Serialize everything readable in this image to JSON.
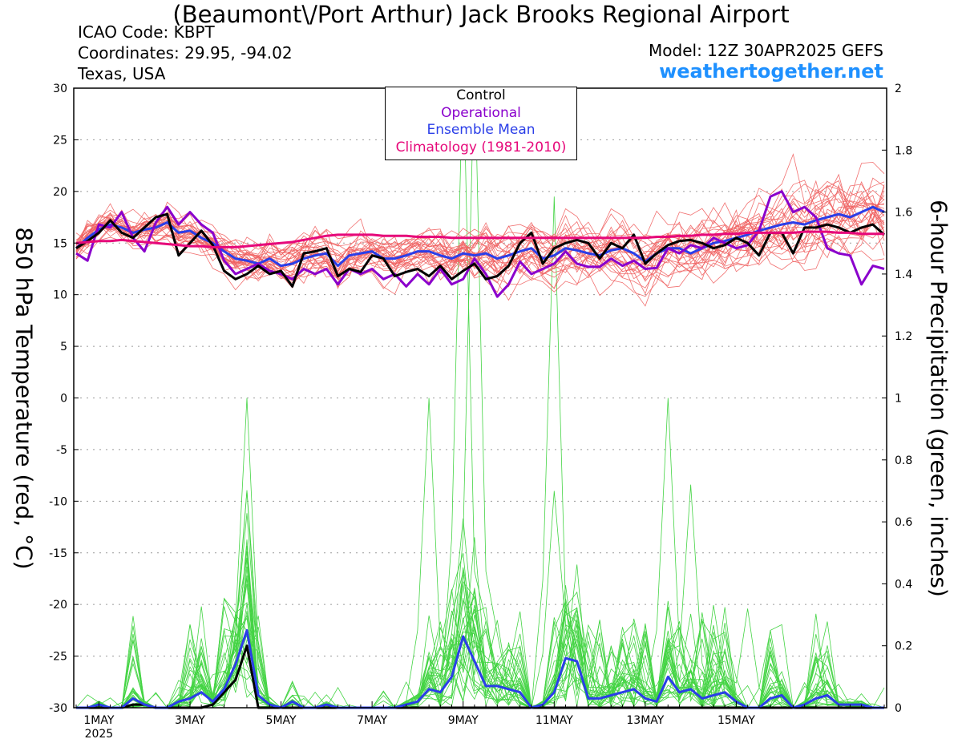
{
  "header": {
    "title": "(Beaumont\\/Port Arthur) Jack Brooks Regional Airport",
    "icao": "ICAO Code: KBPT",
    "coords": "Coordinates: 29.95, -94.02",
    "region": "Texas, USA",
    "model": "Model: 12Z 30APR2025 GEFS",
    "site": "weathertogether.net"
  },
  "legend": {
    "control": "Control",
    "operational": "Operational",
    "mean": "Ensemble Mean",
    "climo": "Climatology (1981-2010)"
  },
  "colors": {
    "member_temp": "#f06060",
    "member_precip": "#44d444",
    "control": "#000000",
    "operational": "#8a00cc",
    "mean": "#2a3ee8",
    "climo": "#e6087a",
    "site_link": "#1e90ff"
  },
  "chart_data": {
    "type": "line",
    "xlabel": "",
    "x_ticks": [
      "1MAY",
      "3MAY",
      "5MAY",
      "7MAY",
      "9MAY",
      "11MAY",
      "13MAY",
      "15MAY"
    ],
    "x_tick_year": "2025",
    "x_step_hours": 6,
    "x_start": "2025-04-30 12Z",
    "x_end": "2025-05-16 18Z",
    "ylabel_left": "850 hPa Temperature (red, °C)",
    "ylabel_right": "6-hour Precipitation (green, inches)",
    "ylim_left": [
      -30,
      30
    ],
    "yticks_left": [
      30,
      25,
      20,
      15,
      10,
      5,
      0,
      -5,
      -10,
      -15,
      -20,
      -25,
      -30
    ],
    "ylim_right": [
      0,
      2
    ],
    "yticks_right": [
      "2",
      "1.8",
      "1.6",
      "1.4",
      "1.2",
      "1",
      "0.8",
      "0.6",
      "0.4",
      "0.2",
      "0"
    ],
    "grid": true,
    "legend_position": "top-center",
    "series": [
      {
        "name": "Control",
        "axis": "left",
        "values": [
          14.5,
          15.2,
          16.0,
          17.2,
          16.0,
          15.5,
          16.5,
          17.5,
          17.8,
          13.8,
          15.0,
          16.2,
          14.8,
          12.3,
          11.5,
          12.0,
          12.8,
          12.0,
          12.3,
          10.8,
          14.0,
          14.2,
          14.5,
          11.8,
          12.5,
          12.2,
          13.8,
          13.5,
          11.8,
          12.2,
          12.5,
          11.8,
          12.8,
          11.5,
          12.3,
          13.0,
          11.5,
          11.8,
          12.8,
          15.0,
          16.0,
          13.0,
          14.5,
          15.0,
          15.3,
          15.0,
          13.5,
          15.0,
          14.5,
          15.8,
          13.0,
          14.0,
          14.8,
          15.2,
          15.3,
          15.0,
          14.5,
          14.8,
          15.5,
          15.0,
          13.8,
          16.0,
          16.0,
          14.0,
          16.5,
          16.5,
          16.8,
          16.5,
          16.0,
          16.5,
          16.8,
          15.8
        ]
      },
      {
        "name": "Operational",
        "axis": "left",
        "values": [
          14.0,
          13.3,
          16.8,
          16.5,
          18.0,
          15.5,
          14.2,
          17.0,
          18.5,
          16.8,
          18.0,
          16.8,
          16.0,
          13.3,
          12.0,
          12.5,
          13.0,
          12.3,
          12.0,
          11.5,
          12.5,
          12.0,
          12.5,
          11.0,
          12.5,
          12.0,
          12.5,
          11.5,
          12.0,
          10.8,
          12.0,
          11.0,
          12.5,
          11.0,
          11.5,
          13.5,
          12.0,
          9.8,
          11.0,
          13.2,
          12.0,
          12.5,
          13.0,
          14.2,
          13.0,
          12.7,
          12.7,
          13.5,
          12.8,
          13.3,
          12.5,
          12.6,
          14.5,
          14.0,
          14.8,
          14.5,
          15.5,
          15.0,
          14.5,
          14.8,
          16.2,
          19.5,
          20.0,
          18.0,
          18.5,
          17.5,
          14.5,
          14.0,
          13.8,
          11.0,
          12.8,
          12.5
        ]
      },
      {
        "name": "Ensemble Mean",
        "axis": "left",
        "values": [
          14.5,
          15.5,
          16.3,
          16.8,
          16.5,
          16.0,
          16.3,
          16.5,
          17.0,
          16.0,
          16.2,
          15.5,
          15.0,
          14.2,
          13.5,
          13.3,
          13.0,
          13.5,
          12.8,
          13.0,
          13.5,
          13.8,
          14.0,
          12.8,
          13.8,
          14.0,
          14.2,
          13.5,
          13.5,
          13.8,
          14.2,
          14.2,
          13.8,
          13.5,
          14.0,
          13.8,
          14.0,
          13.5,
          13.8,
          14.2,
          14.5,
          13.5,
          13.8,
          14.5,
          14.3,
          14.0,
          13.8,
          14.3,
          14.5,
          14.0,
          13.2,
          14.0,
          14.5,
          14.5,
          14.0,
          14.5,
          15.0,
          15.2,
          15.5,
          15.8,
          16.2,
          16.5,
          16.8,
          17.0,
          16.8,
          17.2,
          17.5,
          17.8,
          17.5,
          18.0,
          18.5,
          18.0
        ]
      },
      {
        "name": "Climatology (1981-2010)",
        "axis": "left",
        "values": [
          15.0,
          15.1,
          15.2,
          15.2,
          15.3,
          15.2,
          15.1,
          15.0,
          14.9,
          14.8,
          14.7,
          14.7,
          14.6,
          14.6,
          14.6,
          14.7,
          14.8,
          14.9,
          15.0,
          15.1,
          15.3,
          15.5,
          15.7,
          15.8,
          15.8,
          15.8,
          15.8,
          15.7,
          15.7,
          15.7,
          15.6,
          15.6,
          15.6,
          15.5,
          15.5,
          15.5,
          15.5,
          15.5,
          15.5,
          15.5,
          15.5,
          15.5,
          15.5,
          15.5,
          15.5,
          15.5,
          15.5,
          15.5,
          15.5,
          15.5,
          15.5,
          15.6,
          15.6,
          15.7,
          15.7,
          15.8,
          15.8,
          15.9,
          15.9,
          16.0,
          16.0,
          16.0,
          16.0,
          16.0,
          16.1,
          16.1,
          16.1,
          16.0,
          16.0,
          15.9,
          15.9,
          15.9
        ]
      },
      {
        "name": "Control",
        "axis": "right",
        "values": [
          0,
          0,
          0,
          0,
          0,
          0.01,
          0.01,
          0,
          0,
          0,
          0,
          0,
          0.01,
          0.05,
          0.09,
          0.2,
          0,
          0,
          0,
          0,
          0,
          0,
          0,
          0,
          0,
          0,
          0,
          0,
          0,
          0,
          0,
          0,
          0,
          0,
          0,
          0,
          0,
          0,
          0,
          0,
          0,
          0,
          0,
          0,
          0,
          0,
          0,
          0,
          0,
          0,
          0,
          0,
          0,
          0,
          0,
          0,
          0,
          0,
          0,
          0,
          0,
          0,
          0,
          0,
          0,
          0,
          0,
          0,
          0,
          0,
          0,
          0
        ]
      },
      {
        "name": "Ensemble Mean",
        "axis": "right",
        "values": [
          0,
          0,
          0.01,
          0,
          0,
          0.03,
          0.01,
          0,
          0,
          0.02,
          0.03,
          0.05,
          0.02,
          0.06,
          0.14,
          0.25,
          0.04,
          0.01,
          0,
          0.02,
          0,
          0,
          0.01,
          0,
          0,
          0,
          0,
          0,
          0,
          0.01,
          0.02,
          0.06,
          0.05,
          0.1,
          0.23,
          0.15,
          0.07,
          0.07,
          0.06,
          0.05,
          0,
          0.01,
          0.05,
          0.16,
          0.15,
          0.03,
          0.03,
          0.04,
          0.05,
          0.06,
          0.03,
          0.02,
          0.1,
          0.05,
          0.06,
          0.03,
          0.04,
          0.05,
          0.02,
          0,
          0,
          0.03,
          0.04,
          0,
          0.01,
          0.03,
          0.04,
          0.01,
          0.01,
          0.01,
          0,
          0
        ]
      }
    ]
  }
}
